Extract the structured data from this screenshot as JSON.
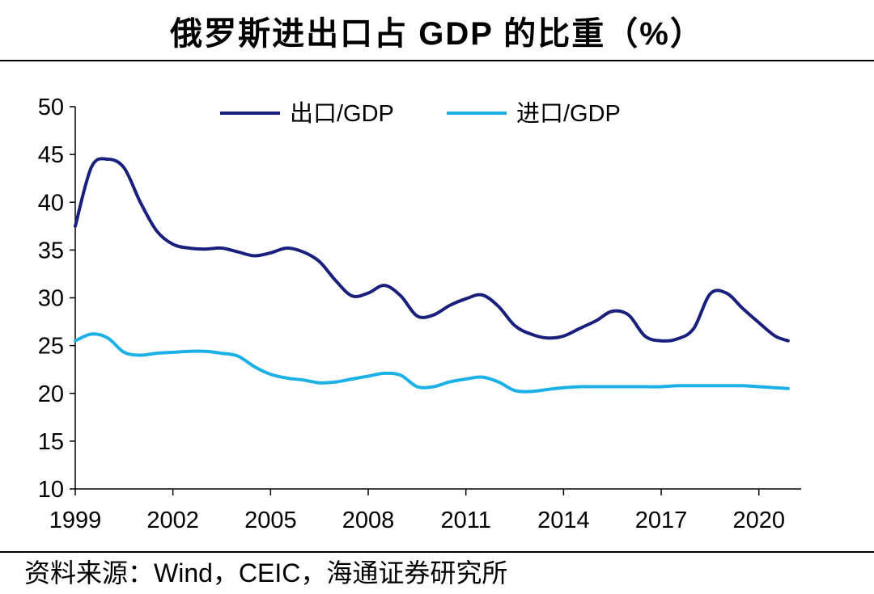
{
  "page": {
    "title": "俄罗斯进出口占 GDP 的比重（%）",
    "source": "资料来源：Wind，CEIC，海通证券研究所"
  },
  "chart_data": {
    "type": "line",
    "title": "俄罗斯进出口占 GDP 的比重（%）",
    "xlabel": "",
    "ylabel": "",
    "ylim": [
      10,
      50
    ],
    "yticks": [
      10,
      15,
      20,
      25,
      30,
      35,
      40,
      45,
      50
    ],
    "xlim": [
      1999,
      2021.3
    ],
    "xticks": [
      1999,
      2002,
      2005,
      2008,
      2011,
      2014,
      2017,
      2020
    ],
    "legend_position": "top-center",
    "grid": false,
    "series": [
      {
        "name": "出口/GDP",
        "color": "#1b1f7c",
        "points": [
          [
            1999.0,
            37.5
          ],
          [
            1999.5,
            43.7
          ],
          [
            2000.0,
            44.5
          ],
          [
            2000.5,
            43.6
          ],
          [
            2001.0,
            40.0
          ],
          [
            2001.5,
            37.0
          ],
          [
            2002.0,
            35.6
          ],
          [
            2002.5,
            35.2
          ],
          [
            2003.0,
            35.1
          ],
          [
            2003.5,
            35.2
          ],
          [
            2004.0,
            34.8
          ],
          [
            2004.5,
            34.4
          ],
          [
            2005.0,
            34.7
          ],
          [
            2005.5,
            35.2
          ],
          [
            2006.0,
            34.8
          ],
          [
            2006.5,
            33.8
          ],
          [
            2007.0,
            31.8
          ],
          [
            2007.5,
            30.2
          ],
          [
            2008.0,
            30.5
          ],
          [
            2008.5,
            31.3
          ],
          [
            2009.0,
            30.2
          ],
          [
            2009.5,
            28.1
          ],
          [
            2010.0,
            28.2
          ],
          [
            2010.5,
            29.2
          ],
          [
            2011.0,
            29.9
          ],
          [
            2011.5,
            30.3
          ],
          [
            2012.0,
            29.1
          ],
          [
            2012.5,
            27.1
          ],
          [
            2013.0,
            26.2
          ],
          [
            2013.5,
            25.8
          ],
          [
            2014.0,
            26.0
          ],
          [
            2014.5,
            26.8
          ],
          [
            2015.0,
            27.6
          ],
          [
            2015.5,
            28.6
          ],
          [
            2016.0,
            28.2
          ],
          [
            2016.5,
            26.0
          ],
          [
            2017.0,
            25.5
          ],
          [
            2017.5,
            25.7
          ],
          [
            2018.0,
            26.8
          ],
          [
            2018.5,
            30.4
          ],
          [
            2019.0,
            30.5
          ],
          [
            2019.5,
            28.9
          ],
          [
            2020.0,
            27.4
          ],
          [
            2020.5,
            26.0
          ],
          [
            2020.9,
            25.5
          ]
        ]
      },
      {
        "name": "进口/GDP",
        "color": "#1cb1e6",
        "points": [
          [
            1999.0,
            25.5
          ],
          [
            1999.5,
            26.2
          ],
          [
            2000.0,
            25.8
          ],
          [
            2000.5,
            24.3
          ],
          [
            2001.0,
            24.0
          ],
          [
            2001.5,
            24.2
          ],
          [
            2002.0,
            24.3
          ],
          [
            2002.5,
            24.4
          ],
          [
            2003.0,
            24.4
          ],
          [
            2003.5,
            24.2
          ],
          [
            2004.0,
            23.9
          ],
          [
            2004.5,
            22.8
          ],
          [
            2005.0,
            22.0
          ],
          [
            2005.5,
            21.6
          ],
          [
            2006.0,
            21.4
          ],
          [
            2006.5,
            21.1
          ],
          [
            2007.0,
            21.2
          ],
          [
            2007.5,
            21.5
          ],
          [
            2008.0,
            21.8
          ],
          [
            2008.5,
            22.1
          ],
          [
            2009.0,
            21.9
          ],
          [
            2009.5,
            20.7
          ],
          [
            2010.0,
            20.7
          ],
          [
            2010.5,
            21.2
          ],
          [
            2011.0,
            21.5
          ],
          [
            2011.5,
            21.7
          ],
          [
            2012.0,
            21.2
          ],
          [
            2012.5,
            20.3
          ],
          [
            2013.0,
            20.2
          ],
          [
            2013.5,
            20.4
          ],
          [
            2014.0,
            20.6
          ],
          [
            2014.5,
            20.7
          ],
          [
            2015.0,
            20.7
          ],
          [
            2015.5,
            20.7
          ],
          [
            2016.0,
            20.7
          ],
          [
            2016.5,
            20.7
          ],
          [
            2017.0,
            20.7
          ],
          [
            2017.5,
            20.8
          ],
          [
            2018.0,
            20.8
          ],
          [
            2018.5,
            20.8
          ],
          [
            2019.0,
            20.8
          ],
          [
            2019.5,
            20.8
          ],
          [
            2020.0,
            20.7
          ],
          [
            2020.5,
            20.6
          ],
          [
            2020.9,
            20.5
          ]
        ]
      }
    ]
  }
}
